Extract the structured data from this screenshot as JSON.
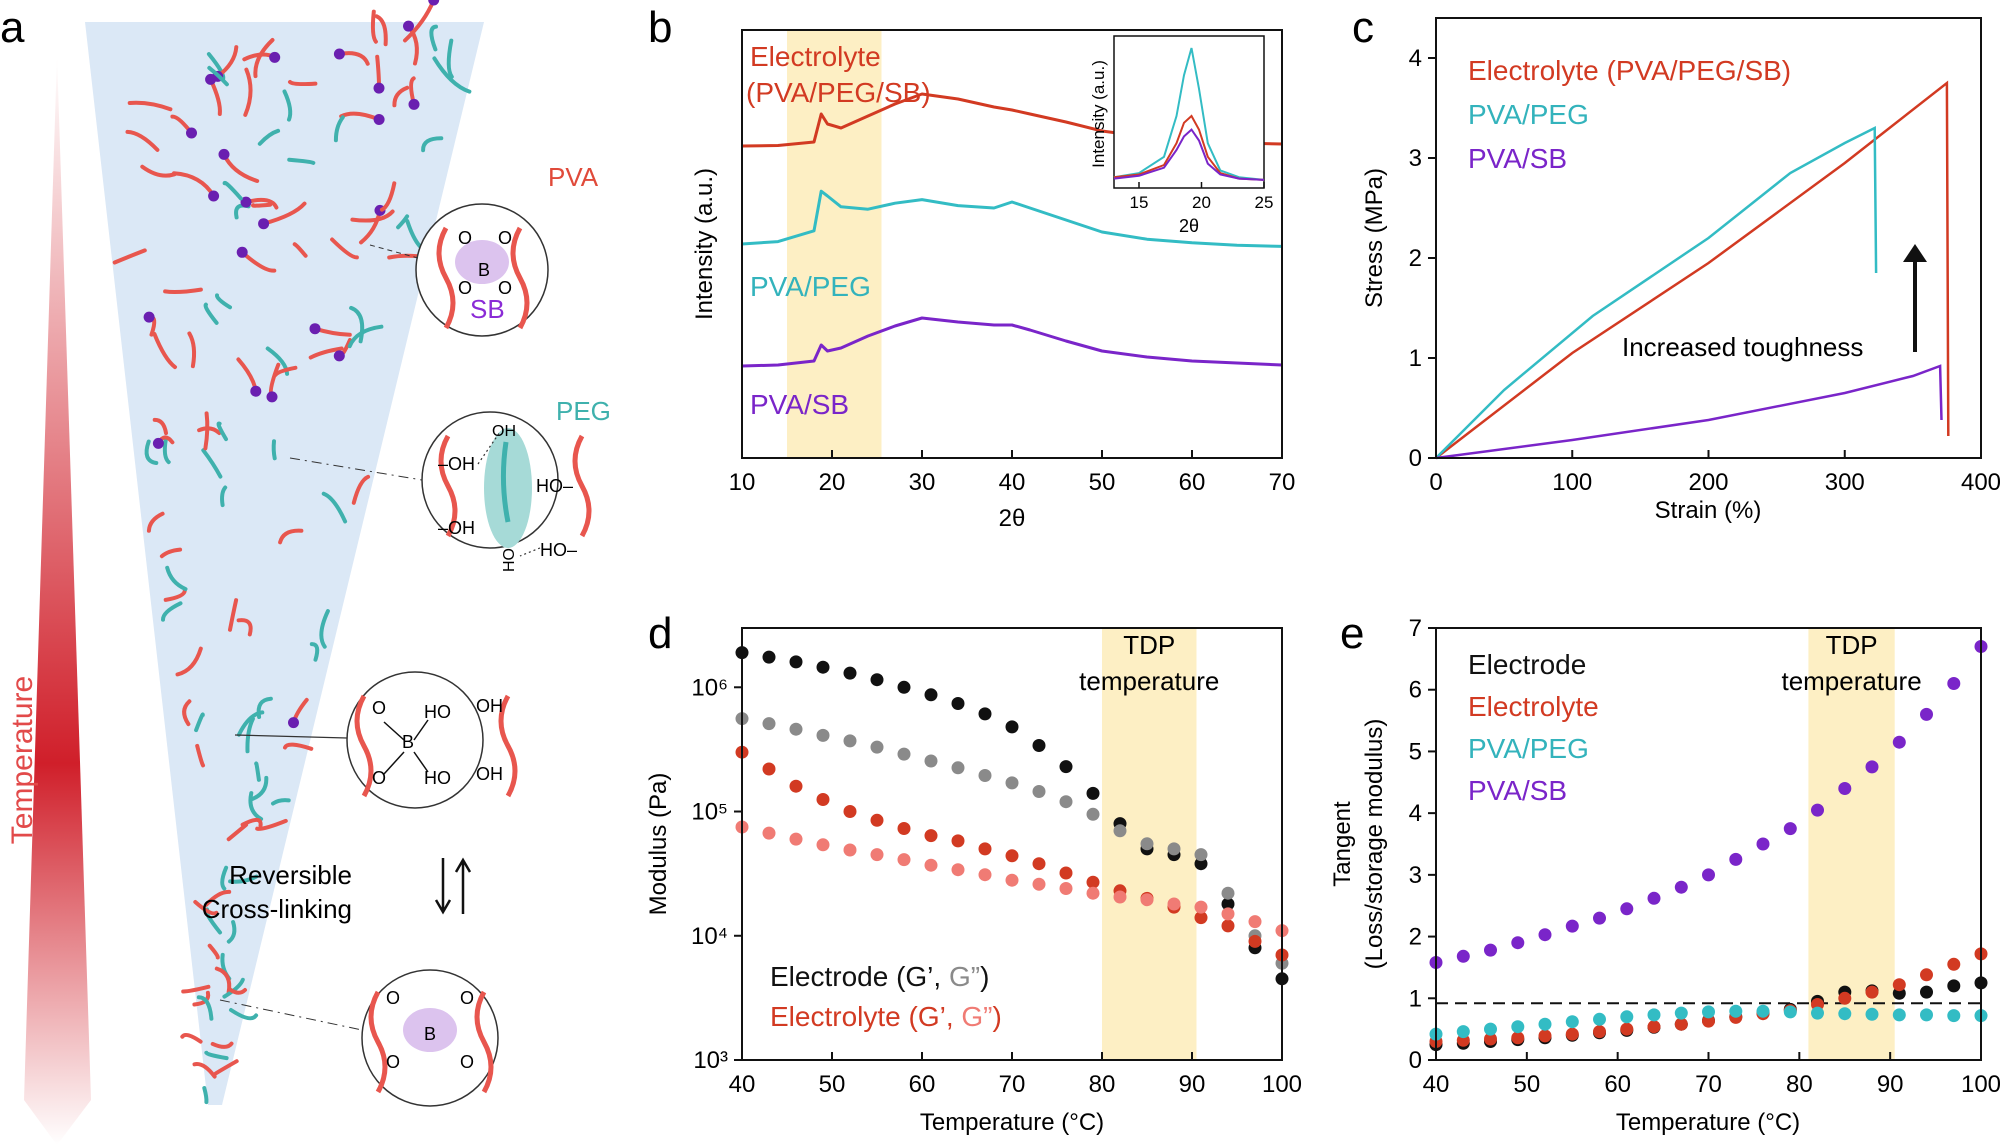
{
  "figure": {
    "colors": {
      "pva": "#e8564e",
      "peg": "#3fb1ad",
      "sb": "#8a2bd6",
      "crosslink": "#6a1fb0",
      "electrolyte": "#d23a22",
      "pvapeg": "#33bcc4",
      "pvasb": "#7a25c9",
      "black": "#111111",
      "gray": "#8a8a8a",
      "pink": "#f07b74",
      "tdp_band": "#fdefc4",
      "funnel": "#dbe8f6",
      "ellipse_purple": "#dcc3ee",
      "ellipse_teal": "#a6dad7"
    },
    "panels": [
      {
        "letter": "a",
        "temperature_label": "Temperature",
        "chain_labels": {
          "pva": "PVA",
          "sb": "SB",
          "peg": "PEG"
        },
        "atoms": {
          "boron": "B",
          "oxygen": "O",
          "hydroxyl_left": "–OH",
          "hydroxyl_right": "HO–",
          "ho": "HO",
          "oh": "OH",
          "hydroxyl_vertical": "HO"
        },
        "reversible_label": [
          "Reversible",
          "Cross-linking"
        ]
      },
      {
        "letter": "b"
      },
      {
        "letter": "c"
      },
      {
        "letter": "d"
      },
      {
        "letter": "e"
      }
    ]
  },
  "chart_data": [
    {
      "panel": "b",
      "type": "line",
      "title": "",
      "xlabel": "2θ",
      "ylabel": "Intensity (a.u.)",
      "xlim": [
        10,
        70
      ],
      "xticks": [
        10,
        20,
        30,
        40,
        50,
        60,
        70
      ],
      "highlight_band": [
        15,
        25.5
      ],
      "x": [
        10,
        14,
        18,
        18.8,
        19.5,
        21,
        24,
        27,
        30,
        34,
        38,
        40,
        42,
        46,
        50,
        55,
        60,
        65,
        70
      ],
      "series": [
        {
          "name": "Electrolyte (PVA/PEG/SB)",
          "label_lines": [
            "Electrolyte",
            "(PVA/PEG/SB)"
          ],
          "color": "electrolyte",
          "values": [
            0.4,
            0.45,
            0.8,
            3.6,
            2.6,
            2.2,
            3.4,
            4.6,
            5.6,
            5.1,
            4.3,
            4.0,
            3.6,
            2.8,
            1.9,
            1.3,
            0.9,
            0.7,
            0.6
          ]
        },
        {
          "name": "PVA/PEG",
          "label_lines": [
            "PVA/PEG"
          ],
          "color": "pvapeg",
          "values": [
            0.5,
            0.7,
            1.6,
            4.9,
            4.5,
            3.6,
            3.4,
            3.9,
            4.2,
            3.7,
            3.5,
            4.0,
            3.5,
            2.5,
            1.5,
            0.9,
            0.6,
            0.4,
            0.3
          ]
        },
        {
          "name": "PVA/SB",
          "label_lines": [
            "PVA/SB"
          ],
          "color": "pvasb",
          "values": [
            0.4,
            0.5,
            0.9,
            2.5,
            1.9,
            2.2,
            3.4,
            4.4,
            5.2,
            4.8,
            4.5,
            4.5,
            4.0,
            2.9,
            1.9,
            1.3,
            0.9,
            0.7,
            0.5
          ]
        }
      ],
      "inset": {
        "type": "line",
        "xlabel": "2θ",
        "ylabel": "Intensity (a.u.)",
        "xlim": [
          13,
          25
        ],
        "xticks": [
          15,
          20,
          25
        ],
        "x": [
          13,
          15,
          17,
          18,
          18.6,
          19.2,
          19.8,
          20.5,
          21.5,
          23,
          25
        ],
        "series": [
          {
            "name": "PVA/PEG",
            "color": "pvapeg",
            "values": [
              0.05,
              0.08,
              0.2,
              0.5,
              0.8,
              1.0,
              0.7,
              0.3,
              0.1,
              0.05,
              0.03
            ]
          },
          {
            "name": "Electrolyte (PVA/PEG/SB)",
            "color": "electrolyte",
            "values": [
              0.05,
              0.07,
              0.14,
              0.3,
              0.45,
              0.5,
              0.4,
              0.2,
              0.08,
              0.04,
              0.03
            ]
          },
          {
            "name": "PVA/SB",
            "color": "pvasb",
            "values": [
              0.04,
              0.06,
              0.12,
              0.25,
              0.35,
              0.4,
              0.32,
              0.15,
              0.07,
              0.04,
              0.03
            ]
          }
        ]
      }
    },
    {
      "panel": "c",
      "type": "line",
      "title": "",
      "xlabel": "Strain (%)",
      "ylabel": "Stress (MPa)",
      "xlim": [
        0,
        400
      ],
      "ylim": [
        0,
        4.4
      ],
      "xticks": [
        0,
        100,
        200,
        300,
        400
      ],
      "yticks": [
        0,
        1,
        2,
        3,
        4
      ],
      "annotation": "Increased toughness",
      "series": [
        {
          "name": "Electrolyte (PVA/PEG/SB)",
          "color": "electrolyte",
          "x": [
            0,
            100,
            200,
            300,
            375,
            376
          ],
          "y": [
            0,
            1.05,
            1.95,
            2.95,
            3.75,
            0.22
          ]
        },
        {
          "name": "PVA/PEG",
          "color": "pvapeg",
          "x": [
            0,
            50,
            115,
            200,
            260,
            300,
            322,
            323
          ],
          "y": [
            0,
            0.68,
            1.42,
            2.2,
            2.85,
            3.15,
            3.3,
            1.85
          ]
        },
        {
          "name": "PVA/SB",
          "color": "pvasb",
          "x": [
            0,
            100,
            200,
            300,
            350,
            370,
            371
          ],
          "y": [
            0,
            0.18,
            0.38,
            0.65,
            0.82,
            0.92,
            0.38
          ]
        }
      ]
    },
    {
      "panel": "d",
      "type": "scatter",
      "title": "",
      "xlabel": "Temperature (°C)",
      "ylabel": "Modulus (Pa)",
      "xlim": [
        40,
        100
      ],
      "xticks": [
        40,
        50,
        60,
        70,
        80,
        90,
        100
      ],
      "yscale": "log",
      "ylim": [
        1000,
        3000000
      ],
      "ytick_labels": [
        "10³",
        "10⁴",
        "10⁵",
        "10⁶"
      ],
      "ytick_values": [
        1000,
        10000,
        100000,
        1000000
      ],
      "highlight_band": [
        80,
        90.5
      ],
      "band_label": [
        "TDP",
        "temperature"
      ],
      "legend_text": {
        "electrode": "Electrode (G’, ",
        "electrode_g2": "G”",
        "electrolyte": "Electrolyte (G’, ",
        "electrolyte_g2": "G”",
        "close": ")"
      },
      "x": [
        40,
        43,
        46,
        49,
        52,
        55,
        58,
        61,
        64,
        67,
        70,
        73,
        76,
        79,
        82,
        85,
        88,
        91,
        94,
        97,
        100
      ],
      "series": [
        {
          "name": "Electrode G'",
          "color": "black",
          "values": [
            1900000,
            1750000,
            1600000,
            1450000,
            1300000,
            1150000,
            1000000,
            870000,
            740000,
            610000,
            480000,
            340000,
            230000,
            140000,
            80000,
            50000,
            45000,
            38000,
            18000,
            8000,
            4500
          ]
        },
        {
          "name": "Electrode G''",
          "color": "gray",
          "values": [
            560000,
            510000,
            460000,
            410000,
            370000,
            330000,
            290000,
            255000,
            225000,
            195000,
            170000,
            145000,
            120000,
            95000,
            70000,
            55000,
            50000,
            45000,
            22000,
            10000,
            6000
          ]
        },
        {
          "name": "Electrolyte G'",
          "color": "electrolyte",
          "values": [
            300000,
            220000,
            160000,
            125000,
            100000,
            85000,
            73000,
            64000,
            58000,
            50000,
            44000,
            38000,
            32000,
            27000,
            23000,
            20000,
            17000,
            14000,
            12000,
            9000,
            7000
          ]
        },
        {
          "name": "Electrolyte G''",
          "color": "pink",
          "values": [
            75000,
            67000,
            60000,
            54000,
            49000,
            45000,
            41000,
            37000,
            34000,
            31000,
            28000,
            26000,
            24000,
            22000,
            20500,
            19500,
            18000,
            17000,
            15000,
            13000,
            11000
          ]
        }
      ]
    },
    {
      "panel": "e",
      "type": "scatter",
      "title": "",
      "xlabel": "Temperature (°C)",
      "ylabel": "Tangent (Loss/storage modulus)",
      "ylabel_lines": [
        "Tangent",
        "(Loss/storage modulus)"
      ],
      "xlim": [
        40,
        100
      ],
      "ylim": [
        0,
        7
      ],
      "xticks": [
        40,
        50,
        60,
        70,
        80,
        90,
        100
      ],
      "yticks": [
        0,
        1,
        2,
        3,
        4,
        5,
        6,
        7
      ],
      "highlight_band": [
        81,
        90.5
      ],
      "band_label": [
        "TDP",
        "temperature"
      ],
      "reference_line": 0.92,
      "x": [
        40,
        43,
        46,
        49,
        52,
        55,
        58,
        61,
        64,
        67,
        70,
        73,
        76,
        79,
        82,
        85,
        88,
        91,
        94,
        97,
        100
      ],
      "series": [
        {
          "name": "Electrode",
          "color": "black",
          "values": [
            0.25,
            0.27,
            0.3,
            0.33,
            0.36,
            0.4,
            0.44,
            0.48,
            0.53,
            0.58,
            0.64,
            0.7,
            0.76,
            0.82,
            0.95,
            1.1,
            1.12,
            1.08,
            1.1,
            1.2,
            1.25
          ]
        },
        {
          "name": "Electrolyte",
          "color": "electrolyte",
          "values": [
            0.3,
            0.32,
            0.34,
            0.36,
            0.39,
            0.42,
            0.46,
            0.5,
            0.54,
            0.58,
            0.63,
            0.69,
            0.75,
            0.8,
            0.9,
            1.0,
            1.1,
            1.22,
            1.38,
            1.55,
            1.72
          ]
        },
        {
          "name": "PVA/PEG",
          "color": "pvapeg",
          "values": [
            0.42,
            0.46,
            0.5,
            0.54,
            0.58,
            0.62,
            0.66,
            0.7,
            0.73,
            0.76,
            0.78,
            0.79,
            0.79,
            0.78,
            0.76,
            0.75,
            0.74,
            0.73,
            0.73,
            0.72,
            0.72
          ]
        },
        {
          "name": "PVA/SB",
          "color": "pvasb",
          "values": [
            1.58,
            1.68,
            1.78,
            1.9,
            2.03,
            2.17,
            2.3,
            2.45,
            2.62,
            2.8,
            3.0,
            3.25,
            3.5,
            3.75,
            4.05,
            4.4,
            4.75,
            5.15,
            5.6,
            6.1,
            6.7
          ]
        }
      ]
    }
  ]
}
